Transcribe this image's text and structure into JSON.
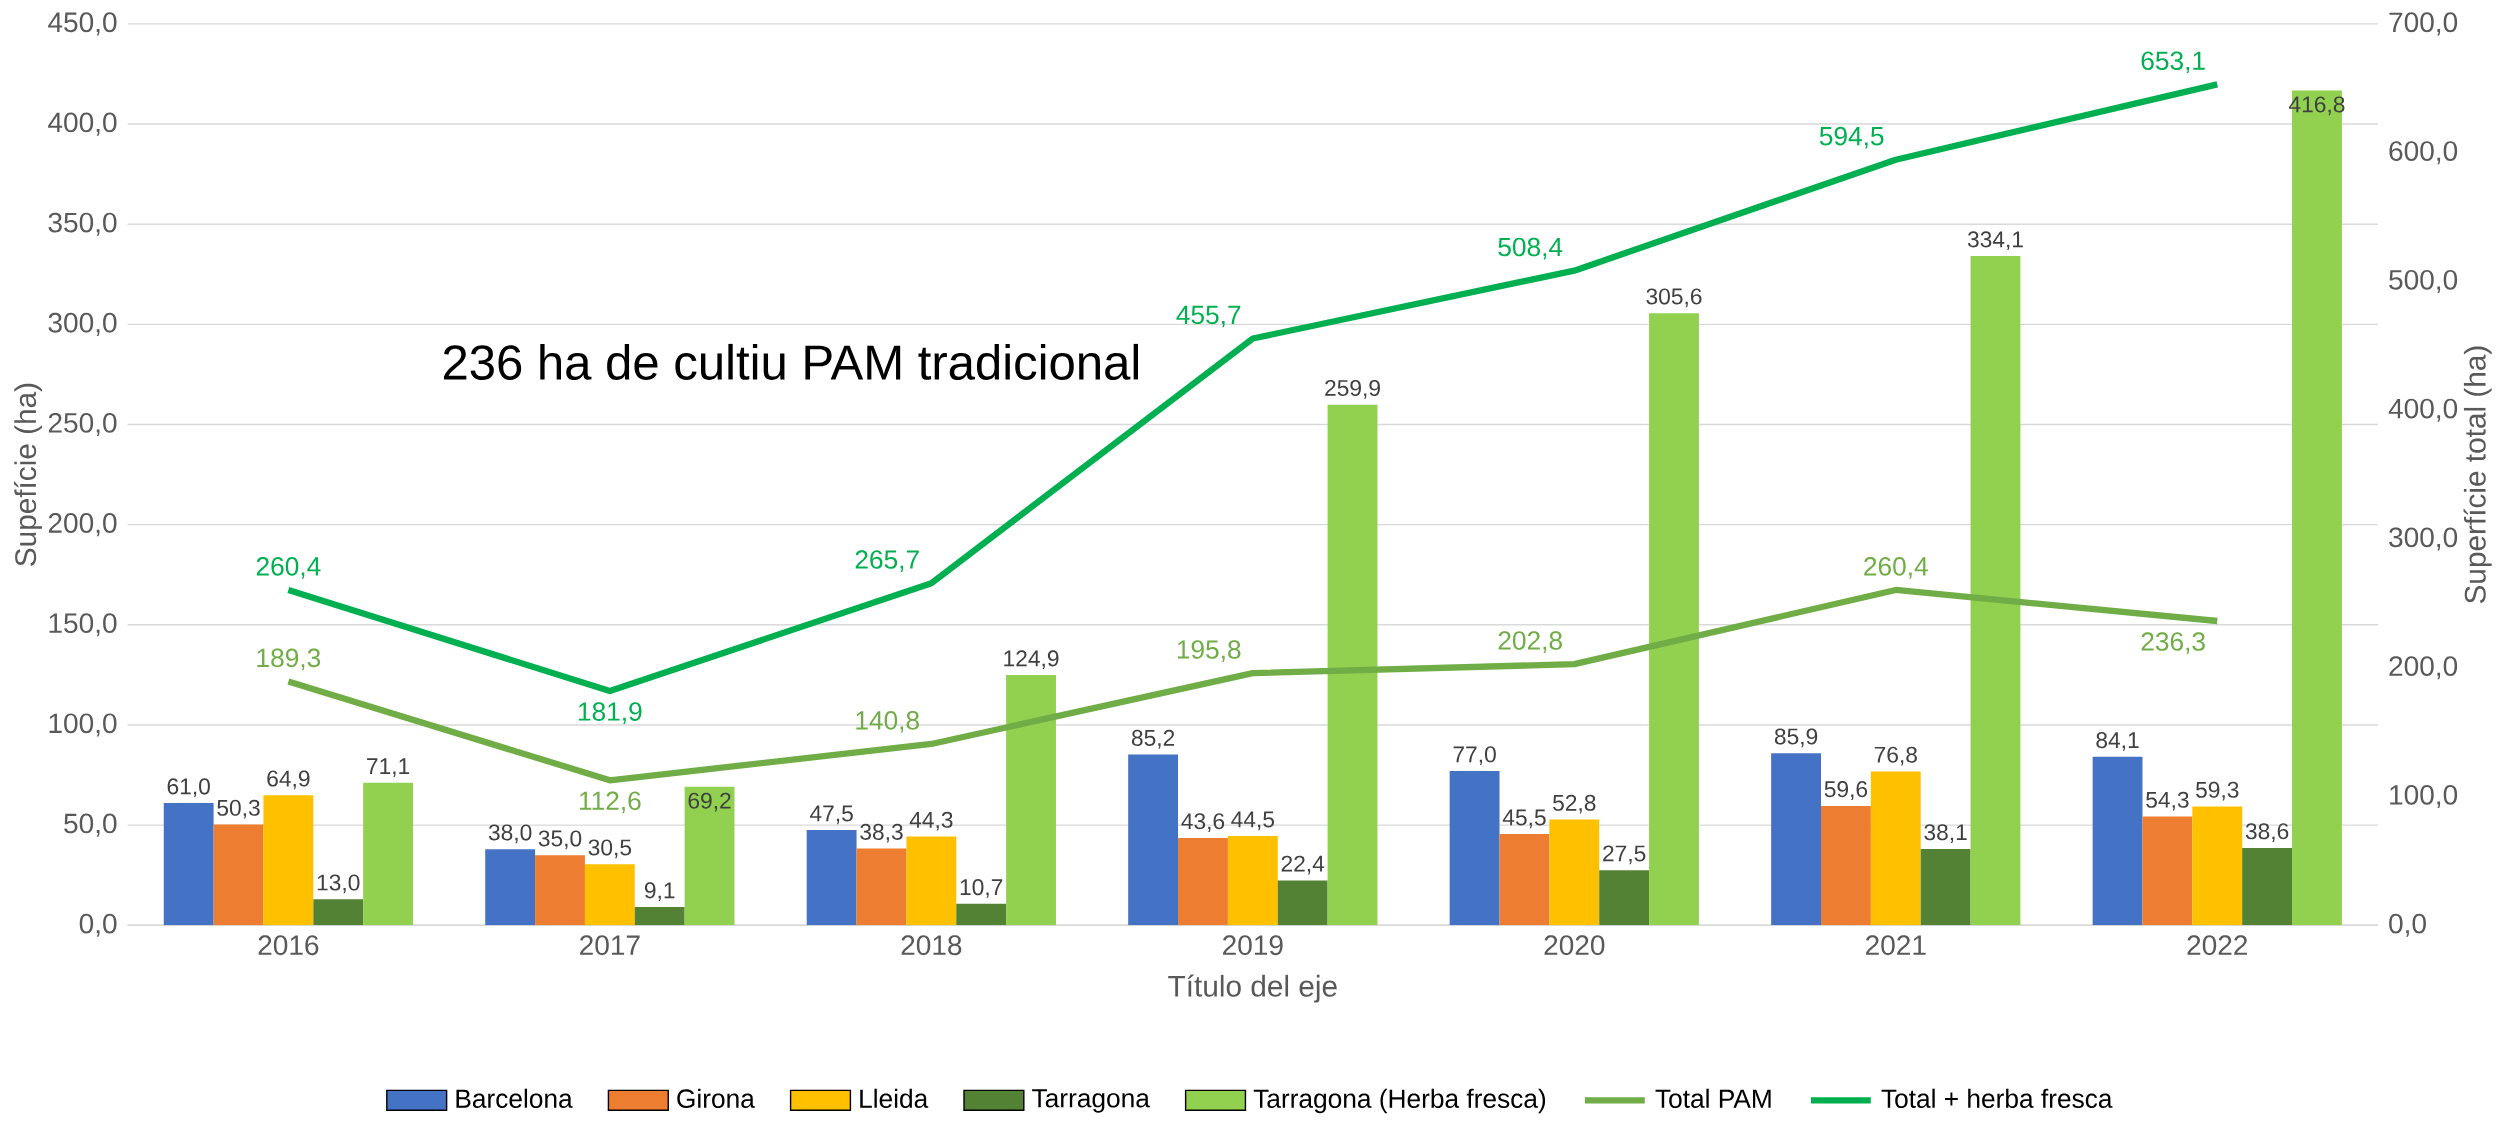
{
  "chart_data": {
    "type": "bar",
    "categories": [
      "2016",
      "2017",
      "2018",
      "2019",
      "2020",
      "2021",
      "2022"
    ],
    "series": [
      {
        "name": "Barcelona",
        "color": "#4472c4",
        "values": [
          61.0,
          38.0,
          47.5,
          85.2,
          77.0,
          85.9,
          84.1
        ],
        "value_labels": [
          "61,0",
          "38,0",
          "47,5",
          "85,2",
          "77,0",
          "85,9",
          "84,1"
        ]
      },
      {
        "name": "Girona",
        "color": "#ed7d31",
        "values": [
          50.3,
          35.0,
          38.3,
          43.6,
          45.5,
          59.6,
          54.3
        ],
        "value_labels": [
          "50,3",
          "35,0",
          "38,3",
          "43,6",
          "45,5",
          "59,6",
          "54,3"
        ]
      },
      {
        "name": "Lleida",
        "color": "#ffc000",
        "values": [
          64.9,
          30.5,
          44.3,
          44.5,
          52.8,
          76.8,
          59.3
        ],
        "value_labels": [
          "64,9",
          "30,5",
          "44,3",
          "44,5",
          "52,8",
          "76,8",
          "59,3"
        ]
      },
      {
        "name": "Tarragona",
        "color": "#548235",
        "values": [
          13.0,
          9.1,
          10.7,
          22.4,
          27.5,
          38.1,
          38.6
        ],
        "value_labels": [
          "13,0",
          "9,1",
          "10,7",
          "22,4",
          "27,5",
          "38,1",
          "38,6"
        ]
      },
      {
        "name": "Tarragona (Herba fresca)",
        "color": "#92d050",
        "values": [
          71.1,
          69.2,
          124.9,
          259.9,
          305.6,
          334.1,
          416.8
        ],
        "value_labels": [
          "71,1",
          "69,2",
          "124,9",
          "259,9",
          "305,6",
          "334,1",
          "416,8"
        ]
      },
      {
        "name": "Total PAM",
        "color": "#70ad47",
        "type": "line",
        "axis": "y2",
        "values": [
          189.3,
          112.6,
          140.8,
          195.8,
          202.8,
          260.4,
          236.3
        ],
        "value_labels": [
          "189,3",
          "112,6",
          "140,8",
          "195,8",
          "202,8",
          "260,4",
          "236,3"
        ]
      },
      {
        "name": "Total + herba fresca",
        "color": "#00b050",
        "type": "line",
        "axis": "y2",
        "values": [
          260.4,
          181.9,
          265.7,
          455.7,
          508.4,
          594.5,
          653.1
        ],
        "value_labels": [
          "260,4",
          "181,9",
          "265,7",
          "455,7",
          "508,4",
          "594,5",
          "653,1"
        ]
      }
    ],
    "xlabel": "Título del eje",
    "ylabel": "Supefície (ha)",
    "y2label": "Superfície total (ha)",
    "ylim": [
      0,
      450
    ],
    "yticks": [
      {
        "value": 0,
        "label": "0,0"
      },
      {
        "value": 50,
        "label": "50,0"
      },
      {
        "value": 100,
        "label": "100,0"
      },
      {
        "value": 150,
        "label": "150,0"
      },
      {
        "value": 200,
        "label": "200,0"
      },
      {
        "value": 250,
        "label": "250,0"
      },
      {
        "value": 300,
        "label": "300,0"
      },
      {
        "value": 350,
        "label": "350,0"
      },
      {
        "value": 400,
        "label": "400,0"
      },
      {
        "value": 450,
        "label": "450,0"
      }
    ],
    "y2lim": [
      0,
      700
    ],
    "y2ticks": [
      {
        "value": 0,
        "label": "0,0"
      },
      {
        "value": 100,
        "label": "100,0"
      },
      {
        "value": 200,
        "label": "200,0"
      },
      {
        "value": 300,
        "label": "300,0"
      },
      {
        "value": 400,
        "label": "400,0"
      },
      {
        "value": 500,
        "label": "500,0"
      },
      {
        "value": 600,
        "label": "600,0"
      },
      {
        "value": 700,
        "label": "700,0"
      }
    ],
    "grid": "y",
    "legend": "bottom",
    "annotations": [
      "236 ha de cultiu PAM tradicional"
    ]
  }
}
